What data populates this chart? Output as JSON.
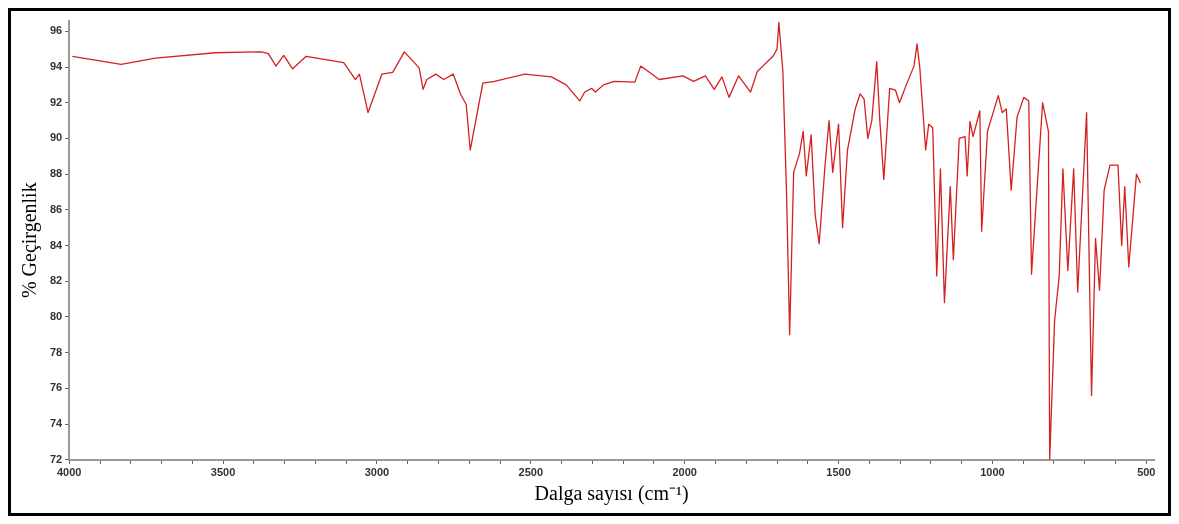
{
  "chart_data": {
    "type": "line",
    "xlabel": "Dalga sayısı (cm⁻¹)",
    "ylabel": "% Geçirgenlik",
    "x": [
      3990,
      3831,
      3720,
      3525,
      3376,
      3353,
      3328,
      3303,
      3274,
      3230,
      3108,
      3070,
      3057,
      3029,
      2984,
      2949,
      2911,
      2863,
      2850,
      2838,
      2809,
      2783,
      2752,
      2729,
      2710,
      2697,
      2656,
      2618,
      2519,
      2433,
      2385,
      2341,
      2325,
      2302,
      2290,
      2264,
      2229,
      2162,
      2143,
      2118,
      2083,
      2006,
      1971,
      1933,
      1904,
      1879,
      1856,
      1825,
      1786,
      1764,
      1713,
      1700,
      1694,
      1681,
      1669,
      1659,
      1646,
      1627,
      1615,
      1605,
      1589,
      1576,
      1563,
      1544,
      1531,
      1519,
      1500,
      1487,
      1471,
      1446,
      1430,
      1417,
      1405,
      1392,
      1376,
      1366,
      1353,
      1334,
      1315,
      1302,
      1280,
      1255,
      1245,
      1236,
      1217,
      1207,
      1194,
      1181,
      1169,
      1156,
      1137,
      1127,
      1108,
      1089,
      1082,
      1073,
      1063,
      1041,
      1035,
      1016,
      981,
      968,
      955,
      939,
      920,
      898,
      882,
      873,
      837,
      818,
      814,
      798,
      783,
      771,
      755,
      736,
      723,
      694,
      678,
      665,
      652,
      637,
      618,
      592,
      580,
      570,
      557,
      532,
      519
    ],
    "series": [
      {
        "color": "#d42020",
        "values": [
          94.6,
          94.15,
          94.5,
          94.8,
          94.85,
          94.75,
          94.05,
          94.65,
          93.9,
          94.6,
          94.25,
          93.3,
          93.6,
          91.45,
          93.6,
          93.7,
          94.85,
          93.95,
          92.75,
          93.3,
          93.6,
          93.3,
          93.6,
          92.5,
          91.9,
          89.35,
          93.1,
          93.2,
          93.6,
          93.45,
          93.0,
          92.1,
          92.6,
          92.8,
          92.6,
          93.0,
          93.2,
          93.15,
          94.05,
          93.75,
          93.3,
          93.5,
          93.2,
          93.5,
          92.75,
          93.45,
          92.3,
          93.5,
          92.6,
          93.75,
          94.6,
          95.0,
          96.5,
          93.75,
          86.9,
          79.0,
          88.1,
          89.15,
          90.4,
          87.9,
          90.2,
          85.7,
          84.1,
          88.5,
          91.0,
          88.1,
          90.8,
          85.0,
          89.35,
          91.65,
          92.5,
          92.2,
          90.0,
          91.0,
          94.3,
          91.0,
          87.7,
          92.8,
          92.7,
          92.0,
          93.0,
          94.05,
          95.3,
          93.95,
          89.35,
          90.8,
          90.6,
          82.3,
          88.3,
          80.8,
          87.3,
          83.2,
          90.0,
          90.1,
          87.9,
          90.95,
          90.1,
          91.55,
          84.8,
          90.4,
          92.4,
          91.45,
          91.65,
          87.1,
          91.2,
          92.3,
          92.1,
          82.4,
          92.0,
          90.4,
          72.0,
          79.8,
          82.3,
          88.3,
          82.6,
          88.3,
          81.4,
          91.45,
          75.6,
          84.4,
          81.5,
          87.1,
          88.5,
          88.5,
          84.0,
          87.3,
          82.8,
          88.0,
          87.5
        ]
      }
    ],
    "xlim": [
      4000,
      475
    ],
    "xticks": [
      4000,
      {
        "value": 3900,
        "label": null
      },
      {
        "value": 3800,
        "label": null
      },
      {
        "value": 3700,
        "label": null
      },
      {
        "value": 3600,
        "label": null
      },
      3500,
      {
        "value": 3400,
        "label": null
      },
      {
        "value": 3300,
        "label": null
      },
      {
        "value": 3200,
        "label": null
      },
      {
        "value": 3100,
        "label": null
      },
      3000,
      {
        "value": 2900,
        "label": null
      },
      {
        "value": 2800,
        "label": null
      },
      {
        "value": 2700,
        "label": null
      },
      {
        "value": 2600,
        "label": null
      },
      2500,
      {
        "value": 2400,
        "label": null
      },
      {
        "value": 2300,
        "label": null
      },
      {
        "value": 2200,
        "label": null
      },
      {
        "value": 2100,
        "label": null
      },
      2000,
      {
        "value": 1900,
        "label": null
      },
      {
        "value": 1800,
        "label": null
      },
      {
        "value": 1700,
        "label": null
      },
      {
        "value": 1600,
        "label": null
      },
      1500,
      {
        "value": 1400,
        "label": null
      },
      {
        "value": 1300,
        "label": null
      },
      {
        "value": 1200,
        "label": null
      },
      {
        "value": 1100,
        "label": null
      },
      1000,
      {
        "value": 900,
        "label": null
      },
      {
        "value": 800,
        "label": null
      },
      {
        "value": 700,
        "label": null
      },
      {
        "value": 600,
        "label": null
      },
      500
    ],
    "ylim": [
      72,
      96.6
    ],
    "yticks": [
      72,
      74,
      76,
      78,
      80,
      82,
      84,
      86,
      88,
      90,
      92,
      94,
      96
    ],
    "grid": false,
    "legend": false,
    "marker": "none",
    "line_style": "solid"
  }
}
